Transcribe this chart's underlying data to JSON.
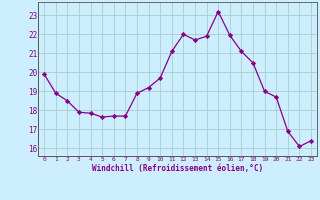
{
  "x": [
    0,
    1,
    2,
    3,
    4,
    5,
    6,
    7,
    8,
    9,
    10,
    11,
    12,
    13,
    14,
    15,
    16,
    17,
    18,
    19,
    20,
    21,
    22,
    23
  ],
  "y": [
    19.9,
    18.9,
    18.5,
    17.9,
    17.85,
    17.65,
    17.7,
    17.7,
    18.9,
    19.2,
    19.7,
    21.1,
    22.0,
    21.7,
    21.9,
    23.2,
    21.95,
    21.1,
    20.5,
    19.0,
    18.7,
    16.9,
    16.1,
    16.4
  ],
  "line_color": "#880088",
  "marker": "D",
  "marker_size": 2.2,
  "bg_color": "#cceeff",
  "grid_color": "#aacccc",
  "ylabel_ticks": [
    16,
    17,
    18,
    19,
    20,
    21,
    22,
    23
  ],
  "xlabel": "Windchill (Refroidissement éolien,°C)",
  "xlim": [
    -0.5,
    23.5
  ],
  "ylim": [
    15.6,
    23.7
  ],
  "tick_color": "#880088",
  "label_color": "#880088"
}
